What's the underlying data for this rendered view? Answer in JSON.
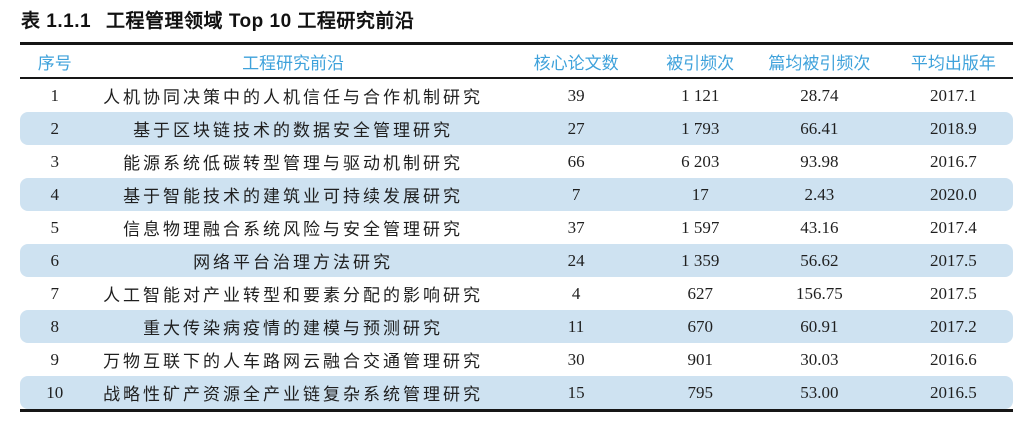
{
  "caption": {
    "number": "表 1.1.1",
    "title": "工程管理领域 Top 10 工程研究前沿"
  },
  "table": {
    "columns": [
      {
        "key": "rank",
        "label": "序号"
      },
      {
        "key": "front",
        "label": "工程研究前沿"
      },
      {
        "key": "core_papers",
        "label": "核心论文数"
      },
      {
        "key": "citations",
        "label": "被引频次"
      },
      {
        "key": "citations_per_paper",
        "label": "篇均被引频次"
      },
      {
        "key": "avg_pub_year",
        "label": "平均出版年"
      }
    ],
    "rows": [
      [
        "1",
        "人机协同决策中的人机信任与合作机制研究",
        "39",
        "1 121",
        "28.74",
        "2017.1"
      ],
      [
        "2",
        "基于区块链技术的数据安全管理研究",
        "27",
        "1 793",
        "66.41",
        "2018.9"
      ],
      [
        "3",
        "能源系统低碳转型管理与驱动机制研究",
        "66",
        "6 203",
        "93.98",
        "2016.7"
      ],
      [
        "4",
        "基于智能技术的建筑业可持续发展研究",
        "7",
        "17",
        "2.43",
        "2020.0"
      ],
      [
        "5",
        "信息物理融合系统风险与安全管理研究",
        "37",
        "1 597",
        "43.16",
        "2017.4"
      ],
      [
        "6",
        "网络平台治理方法研究",
        "24",
        "1 359",
        "56.62",
        "2017.5"
      ],
      [
        "7",
        "人工智能对产业转型和要素分配的影响研究",
        "4",
        "627",
        "156.75",
        "2017.5"
      ],
      [
        "8",
        "重大传染病疫情的建模与预测研究",
        "11",
        "670",
        "60.91",
        "2017.2"
      ],
      [
        "9",
        "万物互联下的人车路网云融合交通管理研究",
        "30",
        "901",
        "30.03",
        "2016.6"
      ],
      [
        "10",
        "战略性矿产资源全产业链复杂系统管理研究",
        "15",
        "795",
        "53.00",
        "2016.5"
      ]
    ]
  },
  "colors": {
    "header_text": "#3fa2db",
    "stripe": "#cee2f1",
    "rule": "#161616",
    "body_text": "#1f1f1f",
    "page_bg": "#ffffff"
  }
}
